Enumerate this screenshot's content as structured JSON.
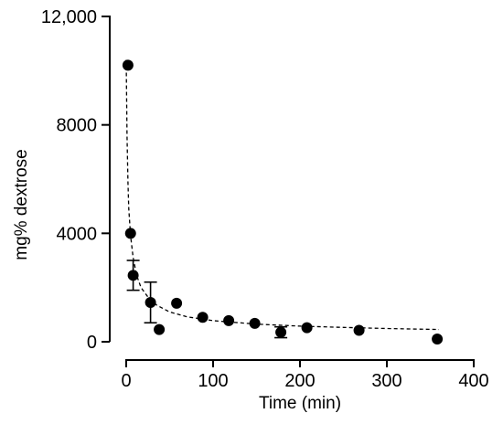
{
  "chart_data": {
    "type": "scatter",
    "xlabel": "Time (min)",
    "ylabel": "mg% dextrose",
    "xlim": [
      0,
      400
    ],
    "ylim": [
      0,
      12000
    ],
    "xticks": [
      0,
      100,
      200,
      300,
      400
    ],
    "yticks": [
      0,
      4000,
      8000,
      12000
    ],
    "xtick_labels": [
      "0",
      "100",
      "200",
      "300",
      "400"
    ],
    "ytick_labels": [
      "0",
      "4000",
      "8000",
      "12,000"
    ],
    "grid": false,
    "legend": "none",
    "points": [
      {
        "x": 2,
        "y": 10200
      },
      {
        "x": 5,
        "y": 4000
      },
      {
        "x": 8,
        "y": 2450,
        "err": 550
      },
      {
        "x": 28,
        "y": 1450,
        "err": 750
      },
      {
        "x": 38,
        "y": 450
      },
      {
        "x": 58,
        "y": 1420
      },
      {
        "x": 88,
        "y": 900
      },
      {
        "x": 118,
        "y": 780
      },
      {
        "x": 148,
        "y": 680
      },
      {
        "x": 178,
        "y": 350,
        "err": 200
      },
      {
        "x": 208,
        "y": 520
      },
      {
        "x": 268,
        "y": 420
      },
      {
        "x": 358,
        "y": 100
      }
    ],
    "fit_curve": [
      [
        0,
        10400
      ],
      [
        1,
        7600
      ],
      [
        2,
        5900
      ],
      [
        3,
        4900
      ],
      [
        5,
        3900
      ],
      [
        8,
        3100
      ],
      [
        12,
        2450
      ],
      [
        17,
        2000
      ],
      [
        25,
        1650
      ],
      [
        35,
        1350
      ],
      [
        50,
        1100
      ],
      [
        70,
        920
      ],
      [
        100,
        780
      ],
      [
        150,
        650
      ],
      [
        200,
        575
      ],
      [
        250,
        530
      ],
      [
        300,
        490
      ],
      [
        360,
        450
      ]
    ]
  }
}
